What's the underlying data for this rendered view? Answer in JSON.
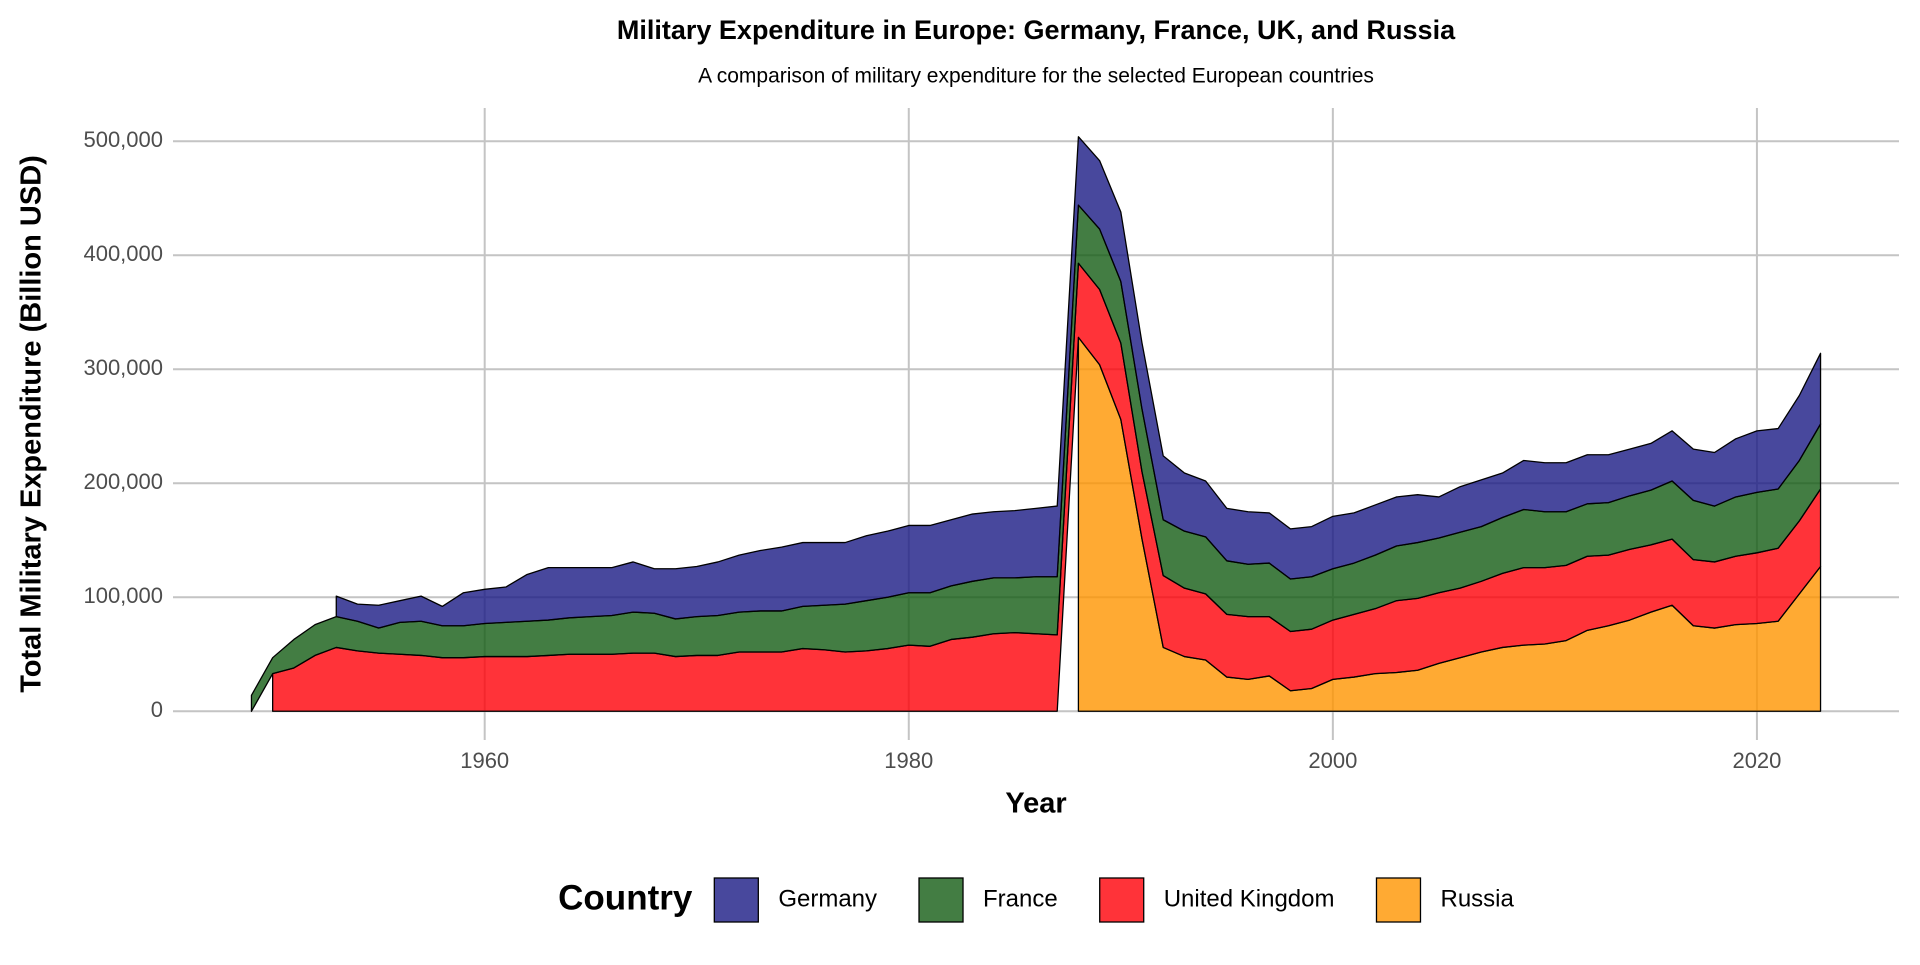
{
  "chart_data": {
    "type": "stacked_area",
    "title": "Military Expenditure in Europe: Germany, France, UK, and Russia",
    "subtitle": "A comparison of military expenditure for the selected European countries",
    "x_label": "Year",
    "y_label": "Total Military Expenditure (Billion USD)",
    "legend_title": "Country",
    "legend_position": "bottom",
    "grid": true,
    "x": [
      1949,
      1950,
      1951,
      1952,
      1953,
      1954,
      1955,
      1956,
      1957,
      1958,
      1959,
      1960,
      1961,
      1962,
      1963,
      1964,
      1965,
      1966,
      1967,
      1968,
      1969,
      1970,
      1971,
      1972,
      1973,
      1974,
      1975,
      1976,
      1977,
      1978,
      1979,
      1980,
      1981,
      1982,
      1983,
      1984,
      1985,
      1986,
      1987,
      1988,
      1989,
      1990,
      1991,
      1992,
      1993,
      1994,
      1995,
      1996,
      1997,
      1998,
      1999,
      2000,
      2001,
      2002,
      2003,
      2004,
      2005,
      2006,
      2007,
      2008,
      2009,
      2010,
      2011,
      2012,
      2013,
      2014,
      2015,
      2016,
      2017,
      2018,
      2019,
      2020,
      2021,
      2022,
      2023
    ],
    "series": [
      {
        "name": "Germany",
        "color": "#1a1a85",
        "values": [
          null,
          null,
          null,
          null,
          18000,
          15000,
          20000,
          19000,
          22000,
          17000,
          29000,
          30000,
          31000,
          41000,
          46000,
          44000,
          43000,
          42000,
          44000,
          39000,
          44000,
          44000,
          47000,
          50000,
          53000,
          56000,
          56000,
          55000,
          54000,
          57000,
          58000,
          59000,
          59000,
          58000,
          59000,
          58000,
          59000,
          60000,
          62000,
          60000,
          60000,
          61000,
          58000,
          56000,
          51000,
          49000,
          46000,
          46000,
          44000,
          44000,
          44000,
          46000,
          44000,
          44000,
          43000,
          42000,
          36000,
          40000,
          41000,
          39000,
          43000,
          43000,
          43000,
          43000,
          42000,
          41000,
          41000,
          44000,
          45000,
          47000,
          51000,
          54000,
          53000,
          57000,
          62000
        ]
      },
      {
        "name": "France",
        "color": "#145c14",
        "values": [
          14000,
          14000,
          25000,
          27000,
          27000,
          26000,
          22000,
          28000,
          30000,
          28000,
          28000,
          29000,
          30000,
          31000,
          31000,
          32000,
          33000,
          34000,
          36000,
          35000,
          33000,
          34000,
          35000,
          35000,
          36000,
          36000,
          37000,
          39000,
          42000,
          44000,
          45000,
          46000,
          47000,
          47000,
          49000,
          49000,
          48000,
          50000,
          51000,
          51000,
          53000,
          54000,
          55000,
          49000,
          50000,
          50000,
          47000,
          46000,
          47000,
          46000,
          46000,
          45000,
          45000,
          47000,
          48000,
          49000,
          48000,
          49000,
          48000,
          49000,
          51000,
          49000,
          47000,
          46000,
          46000,
          47000,
          48000,
          51000,
          52000,
          49000,
          52000,
          53000,
          52000,
          53000,
          57000
        ]
      },
      {
        "name": "United Kingdom",
        "color": "#ff0008",
        "values": [
          null,
          33000,
          38000,
          49000,
          56000,
          53000,
          51000,
          50000,
          49000,
          47000,
          47000,
          48000,
          48000,
          48000,
          49000,
          50000,
          50000,
          50000,
          51000,
          51000,
          48000,
          49000,
          49000,
          52000,
          52000,
          52000,
          55000,
          54000,
          52000,
          53000,
          55000,
          58000,
          57000,
          63000,
          65000,
          68000,
          69000,
          68000,
          67000,
          65000,
          66000,
          67000,
          59000,
          63000,
          60000,
          58000,
          55000,
          55000,
          52000,
          52000,
          52000,
          52000,
          55000,
          57000,
          63000,
          63000,
          62000,
          61000,
          62000,
          65000,
          68000,
          67000,
          66000,
          65000,
          62000,
          62000,
          59000,
          58000,
          58000,
          58000,
          60000,
          62000,
          64000,
          64000,
          68000
        ]
      },
      {
        "name": "Russia",
        "color": "#ff9500",
        "values": [
          null,
          null,
          null,
          null,
          null,
          null,
          null,
          null,
          null,
          null,
          null,
          null,
          null,
          null,
          null,
          null,
          null,
          null,
          null,
          null,
          null,
          null,
          null,
          null,
          null,
          null,
          null,
          null,
          null,
          null,
          null,
          null,
          null,
          null,
          null,
          null,
          null,
          null,
          null,
          328000,
          304000,
          256000,
          151000,
          56000,
          48000,
          45000,
          30000,
          28000,
          31000,
          18000,
          20000,
          28000,
          30000,
          33000,
          34000,
          36000,
          42000,
          47000,
          52000,
          56000,
          58000,
          59000,
          62000,
          71000,
          75000,
          80000,
          87000,
          93000,
          75000,
          73000,
          76000,
          77000,
          79000,
          103000,
          127000
        ]
      }
    ],
    "xlim": [
      1945.3,
      2026.7
    ],
    "ylim": [
      -25200,
      529200
    ],
    "xticks": [
      1960,
      1980,
      2000,
      2020
    ],
    "yticks": [
      0,
      {
        "value": 100000,
        "label": "100,000"
      },
      {
        "value": 200000,
        "label": "200,000"
      },
      {
        "value": 300000,
        "label": "300,000"
      },
      {
        "value": 400000,
        "label": "400,000"
      },
      {
        "value": 500000,
        "label": "500,000"
      }
    ]
  }
}
